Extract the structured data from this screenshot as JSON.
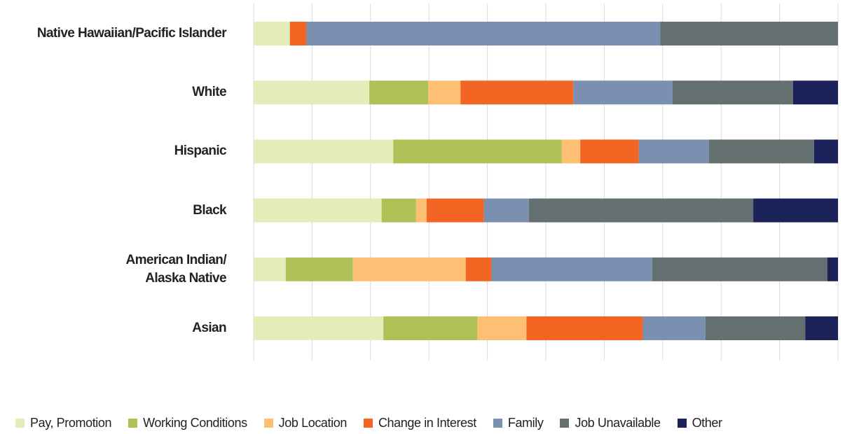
{
  "chart_data": {
    "type": "stacked_bar_horizontal",
    "categories": [
      "Native Hawaiian/Pacific Islander",
      "White",
      "Hispanic",
      "Black",
      "American Indian/\nAlaska Native",
      "Asian"
    ],
    "series": [
      {
        "name": "Pay, Promotion",
        "color": "#e2edb9",
        "values": [
          6.2,
          19.8,
          23.9,
          21.9,
          5.5,
          22.2
        ]
      },
      {
        "name": "Working Conditions",
        "color": "#adc157",
        "values": [
          0,
          10.1,
          28.8,
          5.9,
          11.5,
          16.1
        ]
      },
      {
        "name": "Job Location",
        "color": "#fdbf74",
        "values": [
          0,
          5.5,
          3.2,
          1.8,
          19.3,
          8.4
        ]
      },
      {
        "name": "Change in Interest",
        "color": "#f26522",
        "values": [
          2.8,
          19.3,
          10.0,
          9.8,
          4.4,
          19.9
        ]
      },
      {
        "name": "Family",
        "color": "#7b8fb0",
        "values": [
          60.6,
          17.0,
          12.0,
          7.7,
          27.5,
          10.7
        ]
      },
      {
        "name": "Job Unavailable",
        "color": "#646f6f",
        "values": [
          30.4,
          20.6,
          18.0,
          38.4,
          30.0,
          17.1
        ]
      },
      {
        "name": "Other",
        "color": "#1b2259",
        "values": [
          0,
          7.7,
          4.1,
          14.5,
          1.8,
          5.6
        ]
      }
    ],
    "xlim": [
      0,
      100
    ],
    "xticks": [
      0,
      10,
      20,
      30,
      40,
      50,
      60,
      70,
      80,
      90,
      100
    ],
    "grid": true
  }
}
